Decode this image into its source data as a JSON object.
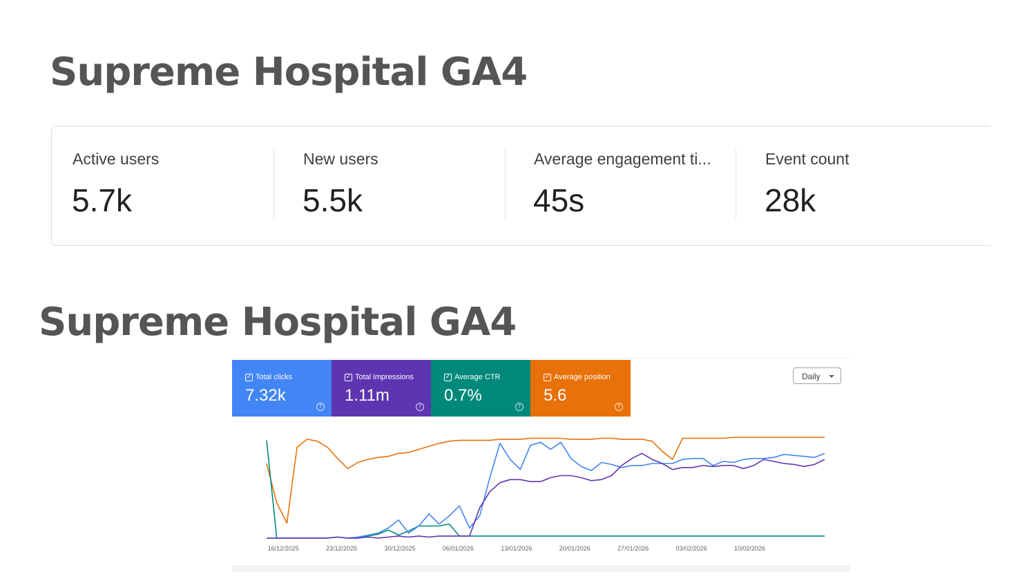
{
  "titles": {
    "first": "Supreme Hospital GA4",
    "second": "Supreme Hospital GA4"
  },
  "ga4_metrics": [
    {
      "label": "Active users",
      "value": "5.7k"
    },
    {
      "label": "New users",
      "value": "5.5k"
    },
    {
      "label": "Average engagement ti...",
      "value": "45s"
    },
    {
      "label": "Event count",
      "value": "28k"
    }
  ],
  "search_console": {
    "cards": [
      {
        "label": "Total clicks",
        "value": "7.32k",
        "color": "#4285f4",
        "icon": "checkbox-checked-icon"
      },
      {
        "label": "Total impressions",
        "value": "1.11m",
        "color": "#5e35b1",
        "icon": "checkbox-checked-icon"
      },
      {
        "label": "Average CTR",
        "value": "0.7%",
        "color": "#00897b",
        "icon": "checkbox-checked-icon"
      },
      {
        "label": "Average position",
        "value": "5.6",
        "color": "#e8710a",
        "icon": "checkbox-checked-icon"
      }
    ],
    "granularity_select": "Daily"
  },
  "chart_data": {
    "type": "line",
    "x_tick_labels": [
      "16/12/2025",
      "23/12/2025",
      "30/12/2025",
      "06/01/2026",
      "13/01/2026",
      "20/01/2026",
      "27/01/2026",
      "03/02/2026",
      "10/02/2026"
    ],
    "x_start": "2025-12-14",
    "x_end": "2026-02-19",
    "y_axis_visible": false,
    "grid": false,
    "y_scale": "each series normalized 0–1 within the chart area",
    "series": [
      {
        "name": "Total clicks",
        "color": "#4285f4",
        "values": [
          0.0,
          0.0,
          0.0,
          0.0,
          0.0,
          0.0,
          0.0,
          0.01,
          0.0,
          0.01,
          0.03,
          0.05,
          0.1,
          0.18,
          0.05,
          0.12,
          0.24,
          0.14,
          0.22,
          0.32,
          0.1,
          0.22,
          0.6,
          0.94,
          0.78,
          0.68,
          0.92,
          0.95,
          0.88,
          0.95,
          0.79,
          0.71,
          0.67,
          0.75,
          0.73,
          0.7,
          0.72,
          0.72,
          0.74,
          0.74,
          0.74,
          0.78,
          0.79,
          0.79,
          0.72,
          0.76,
          0.75,
          0.78,
          0.79,
          0.79,
          0.8,
          0.83,
          0.82,
          0.81,
          0.8,
          0.84
        ]
      },
      {
        "name": "Total impressions",
        "color": "#5e35b1",
        "values": [
          0.0,
          0.0,
          0.0,
          0.0,
          0.0,
          0.0,
          0.0,
          0.01,
          0.0,
          0.0,
          0.01,
          0.0,
          0.01,
          0.02,
          0.01,
          0.02,
          0.01,
          0.02,
          0.02,
          0.02,
          0.02,
          0.3,
          0.46,
          0.55,
          0.58,
          0.58,
          0.56,
          0.56,
          0.6,
          0.62,
          0.62,
          0.6,
          0.57,
          0.58,
          0.62,
          0.72,
          0.79,
          0.84,
          0.78,
          0.74,
          0.68,
          0.7,
          0.7,
          0.72,
          0.71,
          0.72,
          0.72,
          0.69,
          0.72,
          0.78,
          0.76,
          0.74,
          0.73,
          0.71,
          0.73,
          0.78
        ]
      },
      {
        "name": "Average CTR",
        "color": "#00897b",
        "values": [
          0.97,
          0.0,
          0.0,
          0.0,
          0.0,
          0.0,
          0.0,
          0.01,
          0.0,
          0.0,
          0.02,
          0.04,
          0.08,
          0.03,
          0.07,
          0.12,
          0.12,
          0.12,
          0.14,
          0.02,
          0.02,
          0.02,
          0.02,
          0.02,
          0.02,
          0.02,
          0.02,
          0.02,
          0.02,
          0.02,
          0.02,
          0.02,
          0.02,
          0.02,
          0.02,
          0.02,
          0.02,
          0.02,
          0.02,
          0.02,
          0.02,
          0.02,
          0.02,
          0.02,
          0.02,
          0.02,
          0.02,
          0.02,
          0.02,
          0.02,
          0.02,
          0.02,
          0.02,
          0.02,
          0.02,
          0.02
        ]
      },
      {
        "name": "Average position",
        "color": "#e8710a",
        "values": [
          0.74,
          0.35,
          0.15,
          0.9,
          0.98,
          0.96,
          0.9,
          0.79,
          0.69,
          0.75,
          0.78,
          0.8,
          0.81,
          0.84,
          0.85,
          0.88,
          0.91,
          0.94,
          0.96,
          0.97,
          0.97,
          0.97,
          0.97,
          0.98,
          0.98,
          0.98,
          0.99,
          0.99,
          0.99,
          0.99,
          0.98,
          0.98,
          0.98,
          0.99,
          0.99,
          0.98,
          0.98,
          0.98,
          0.96,
          0.86,
          0.78,
          0.99,
          0.99,
          0.99,
          0.99,
          0.99,
          1.0,
          1.0,
          1.0,
          1.0,
          1.0,
          1.0,
          1.0,
          1.0,
          1.0,
          1.0
        ]
      }
    ]
  }
}
